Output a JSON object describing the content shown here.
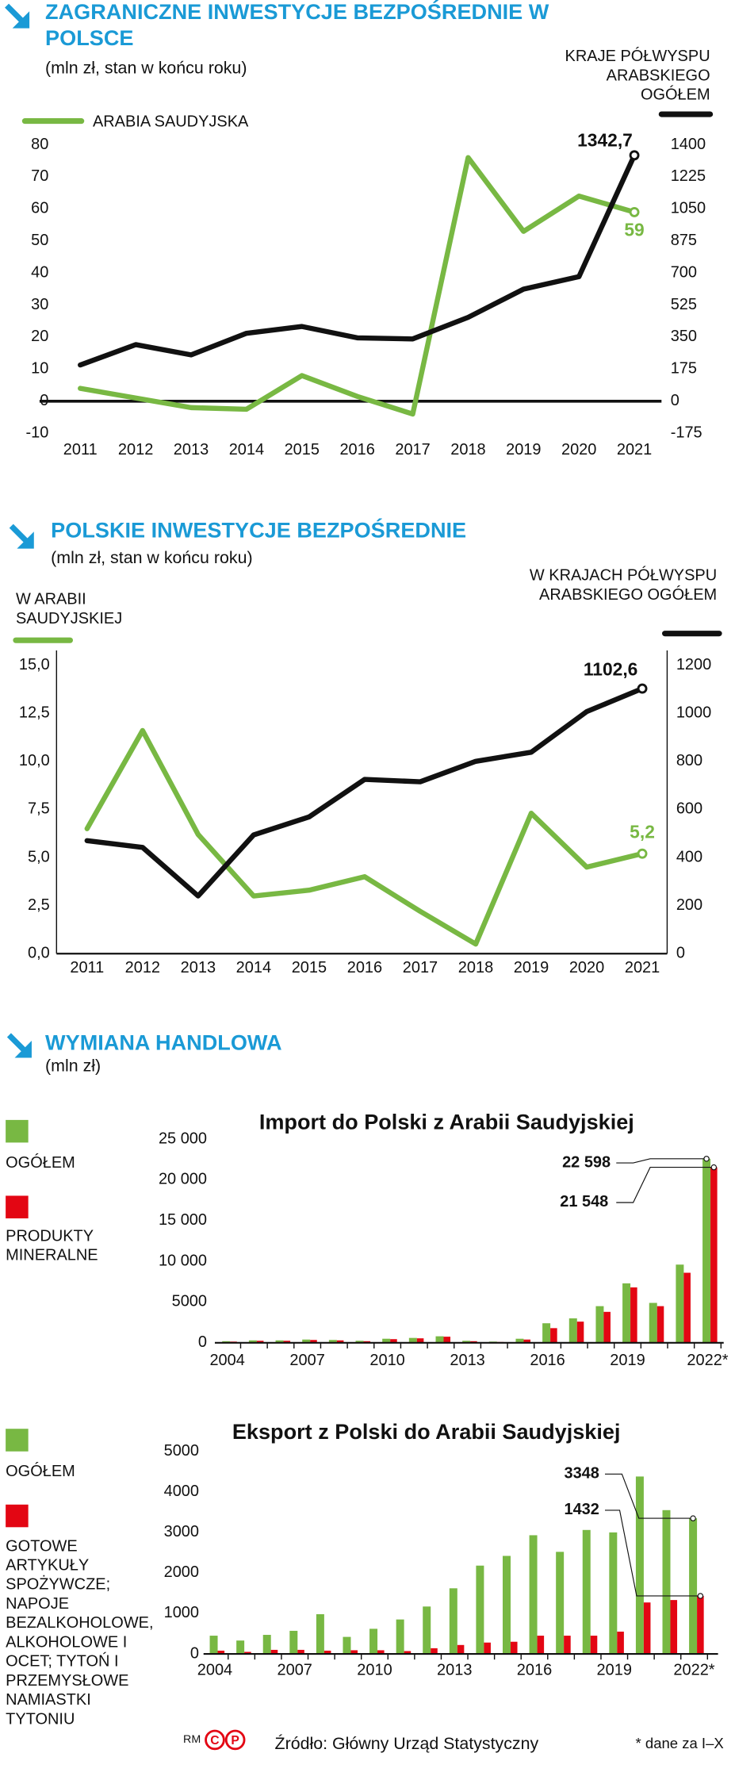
{
  "chart_data": [
    {
      "type": "line",
      "title": "ZAGRANICZNE INWESTYCJE BEZPOŚREDNIE W POLSCE",
      "subtitle": "(mln zł, stan w końcu roku)",
      "categories": [
        "2011",
        "2012",
        "2013",
        "2014",
        "2015",
        "2016",
        "2017",
        "2018",
        "2019",
        "2020",
        "2021"
      ],
      "series": [
        {
          "name": "ARABIA SAUDYJSKA",
          "color": "#78b843",
          "values": [
            4,
            1,
            -2,
            -2.5,
            8,
            1.5,
            -4,
            76,
            53,
            64,
            59
          ],
          "value_labels": [
            null,
            null,
            null,
            null,
            null,
            null,
            null,
            null,
            null,
            null,
            "59"
          ]
        },
        {
          "name": "KRAJE PÓŁWYSPU ARABSKIEGO OGÓŁEM",
          "color": "#111111",
          "axis": "y2",
          "values": [
            198,
            309,
            253,
            371,
            408,
            346,
            340,
            458,
            612,
            680,
            1342.7
          ],
          "value_labels": [
            null,
            null,
            null,
            null,
            null,
            null,
            null,
            null,
            null,
            null,
            "1342,7"
          ]
        }
      ],
      "ylim": [
        -10,
        80
      ],
      "yticks": [
        -10,
        0,
        10,
        20,
        30,
        40,
        50,
        60,
        70,
        80
      ],
      "y2lim": [
        -175,
        1400
      ],
      "y2ticks": [
        -175,
        0,
        175,
        350,
        525,
        700,
        875,
        1050,
        1225,
        1400
      ]
    },
    {
      "type": "line",
      "title": "POLSKIE INWESTYCJE BEZPOŚREDNIE",
      "subtitle": "(mln zł, stan w końcu roku)",
      "categories": [
        "2011",
        "2012",
        "2013",
        "2014",
        "2015",
        "2016",
        "2017",
        "2018",
        "2019",
        "2020",
        "2021"
      ],
      "series": [
        {
          "name": "W ARABII SAUDYJSKIEJ",
          "color": "#78b843",
          "values": [
            6.5,
            11.6,
            6.2,
            3.0,
            3.3,
            4.0,
            2.2,
            0.5,
            7.3,
            4.5,
            5.2
          ],
          "value_labels": [
            null,
            null,
            null,
            null,
            null,
            null,
            null,
            null,
            null,
            null,
            "5,2"
          ]
        },
        {
          "name": "W KRAJACH PÓŁWYSPU ARABSKIEGO OGÓŁEM",
          "color": "#111111",
          "axis": "y2",
          "values": [
            470,
            442,
            240,
            494,
            569,
            725,
            715,
            800,
            838,
            1007,
            1102.6
          ],
          "value_labels": [
            null,
            null,
            null,
            null,
            null,
            null,
            null,
            null,
            null,
            null,
            "1102,6"
          ]
        }
      ],
      "ylim": [
        0,
        15
      ],
      "yticks": [
        {
          "value": 0,
          "label": "0,0"
        },
        {
          "value": 2.5,
          "label": "2,5"
        },
        {
          "value": 5,
          "label": "5,0"
        },
        {
          "value": 7.5,
          "label": "7,5"
        },
        {
          "value": 10,
          "label": "10,0"
        },
        {
          "value": 12.5,
          "label": "12,5"
        },
        {
          "value": 15,
          "label": "15,0"
        }
      ],
      "y2lim": [
        0,
        1200
      ],
      "y2ticks": [
        0,
        200,
        400,
        600,
        800,
        1000,
        1200
      ]
    },
    {
      "type": "bar",
      "title": "Import do Polski z Arabii Saudyjskiej",
      "categories": [
        "2004",
        null,
        null,
        "2007",
        null,
        null,
        "2010",
        null,
        null,
        "2013",
        null,
        null,
        "2016",
        null,
        null,
        "2019",
        null,
        null,
        "2022*"
      ],
      "series": [
        {
          "name": "OGÓŁEM",
          "color": "#78b843",
          "values": [
            200,
            300,
            300,
            400,
            350,
            250,
            500,
            600,
            800,
            250,
            150,
            500,
            2400,
            3000,
            4500,
            7300,
            4900,
            9600,
            22598
          ],
          "value_labels": [
            null,
            null,
            null,
            null,
            null,
            null,
            null,
            null,
            null,
            null,
            null,
            null,
            null,
            null,
            null,
            null,
            null,
            null,
            "22 598"
          ]
        },
        {
          "name": "PRODUKTY MINERALNE",
          "color": "#e30613",
          "values": [
            150,
            250,
            250,
            350,
            300,
            200,
            450,
            550,
            750,
            200,
            100,
            400,
            1800,
            2600,
            3800,
            6800,
            4500,
            8600,
            21548
          ],
          "value_labels": [
            null,
            null,
            null,
            null,
            null,
            null,
            null,
            null,
            null,
            null,
            null,
            null,
            null,
            null,
            null,
            null,
            null,
            null,
            "21 548"
          ]
        }
      ],
      "ylim": [
        0,
        25000
      ],
      "yticks": [
        0,
        5000,
        {
          "value": 10000,
          "label": "10 000"
        },
        {
          "value": 15000,
          "label": "15 000"
        },
        {
          "value": 20000,
          "label": "20 000"
        },
        {
          "value": 25000,
          "label": "25 000"
        }
      ]
    },
    {
      "type": "bar",
      "title": "Eksport z Polski do Arabii Saudyjskiej",
      "categories": [
        "2004",
        null,
        null,
        "2007",
        null,
        null,
        "2010",
        null,
        null,
        "2013",
        null,
        null,
        "2016",
        null,
        null,
        "2019",
        null,
        null,
        "2022*"
      ],
      "series": [
        {
          "name": "OGÓŁEM",
          "color": "#78b843",
          "values": [
            450,
            330,
            470,
            570,
            980,
            420,
            620,
            850,
            1170,
            1620,
            2180,
            2420,
            2930,
            2520,
            3060,
            3000,
            4380,
            3550,
            3348
          ],
          "value_labels": [
            null,
            null,
            null,
            null,
            null,
            null,
            null,
            null,
            null,
            null,
            null,
            null,
            null,
            null,
            null,
            null,
            null,
            null,
            "3348"
          ]
        },
        {
          "name": "GOTOWE ARTYKUŁY SPOŻYWCZE; NAPOJE BEZALKOHOLOWE, ALKOHOLOWE I OCET; TYTOŃ I PRZEMYSŁOWE NAMIASTKI TYTONIU",
          "color": "#e30613",
          "values": [
            80,
            50,
            100,
            100,
            80,
            90,
            90,
            70,
            140,
            220,
            280,
            300,
            450,
            450,
            450,
            550,
            1270,
            1330,
            1432
          ],
          "value_labels": [
            null,
            null,
            null,
            null,
            null,
            null,
            null,
            null,
            null,
            null,
            null,
            null,
            null,
            null,
            null,
            null,
            null,
            null,
            "1432"
          ]
        }
      ],
      "ylim": [
        0,
        5000
      ],
      "yticks": [
        0,
        1000,
        2000,
        3000,
        4000,
        5000
      ]
    }
  ],
  "section": {
    "title": "WYMIANA HANDLOWA",
    "subtitle": "(mln zł)"
  },
  "credits": [
    "RM",
    "C",
    "P"
  ],
  "source": "Źródło: Główny Urząd Statystyczny",
  "footnote": "* dane za I–X"
}
